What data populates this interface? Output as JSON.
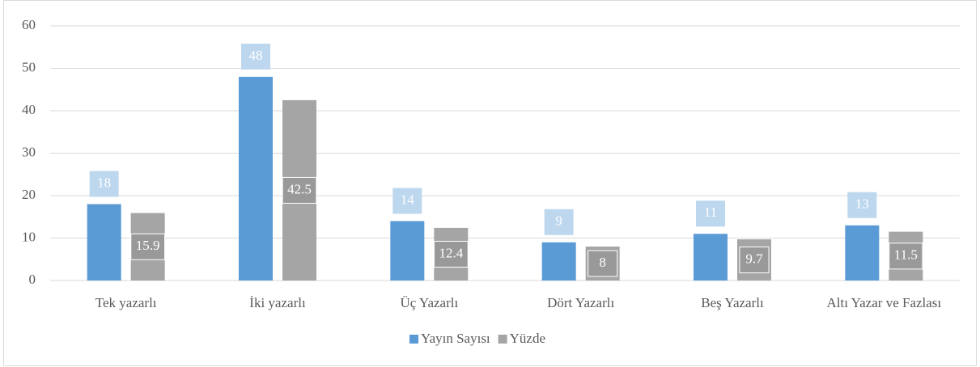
{
  "chart_data": {
    "type": "bar",
    "categories": [
      "Tek yazarlı",
      "İki yazarlı",
      "Üç Yazarlı",
      "Dört Yazarlı",
      "Beş Yazarlı",
      "Altı Yazar ve Fazlası"
    ],
    "series": [
      {
        "name": "Yayın Sayısı",
        "color": "#5b9bd5",
        "values": [
          18,
          48,
          14,
          9,
          11,
          13
        ]
      },
      {
        "name": "Yüzde",
        "color": "#a5a5a5",
        "values": [
          15.9,
          42.5,
          12.4,
          8,
          9.7,
          11.5
        ]
      }
    ],
    "ylim": [
      0,
      60
    ],
    "yticks": [
      0,
      10,
      20,
      30,
      40,
      50,
      60
    ],
    "grid": true,
    "legend": "bottom"
  }
}
